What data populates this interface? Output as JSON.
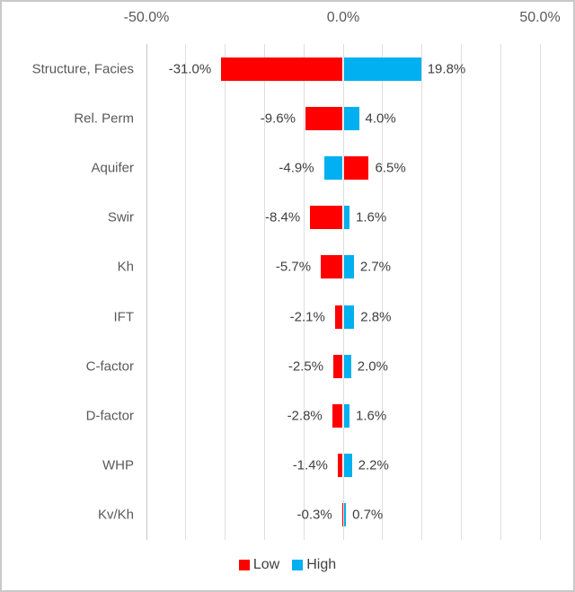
{
  "chart_data": {
    "type": "bar",
    "orientation": "horizontal",
    "subtype": "tornado",
    "title": "",
    "categories": [
      "Structure, Facies",
      "Rel. Perm",
      "Aquifer",
      "Swir",
      "Kh",
      "IFT",
      "C-factor",
      "D-factor",
      "WHP",
      "Kv/Kh"
    ],
    "series": [
      {
        "name": "Low",
        "color": "#FF0000",
        "values": [
          -31.0,
          -9.6,
          6.5,
          -8.4,
          -5.7,
          -2.1,
          -2.5,
          -2.8,
          -1.4,
          -0.3
        ]
      },
      {
        "name": "High",
        "color": "#00B0F0",
        "values": [
          19.8,
          4.0,
          -4.9,
          1.6,
          2.7,
          2.8,
          2.0,
          1.6,
          2.2,
          0.7
        ]
      }
    ],
    "data_label_texts": {
      "negative": [
        "-31.0%",
        "-9.6%",
        "-4.9%",
        "-8.4%",
        "-5.7%",
        "-2.1%",
        "-2.5%",
        "-2.8%",
        "-1.4%",
        "-0.3%"
      ],
      "positive": [
        "19.8%",
        "4.0%",
        "6.5%",
        "1.6%",
        "2.7%",
        "2.8%",
        "2.0%",
        "1.6%",
        "2.2%",
        "0.7%"
      ]
    },
    "axis": {
      "min": -50,
      "max": 50,
      "gridline_step": 10,
      "ticks": [
        {
          "value": -50,
          "label": "-50.0%"
        },
        {
          "value": 0,
          "label": "0.0%"
        },
        {
          "value": 50,
          "label": "50.0%"
        }
      ],
      "position": "top"
    },
    "grid": "vertical-on",
    "legend_position": "bottom",
    "legend": [
      {
        "name": "Low",
        "color": "#FF0000"
      },
      {
        "name": "High",
        "color": "#00B0F0"
      }
    ]
  },
  "colors": {
    "low": "#FF0000",
    "high": "#00B0F0",
    "gridline": "#dedede",
    "axis_text": "#595959",
    "data_label_text": "#3f3f3f",
    "border": "#c9c9c9"
  }
}
